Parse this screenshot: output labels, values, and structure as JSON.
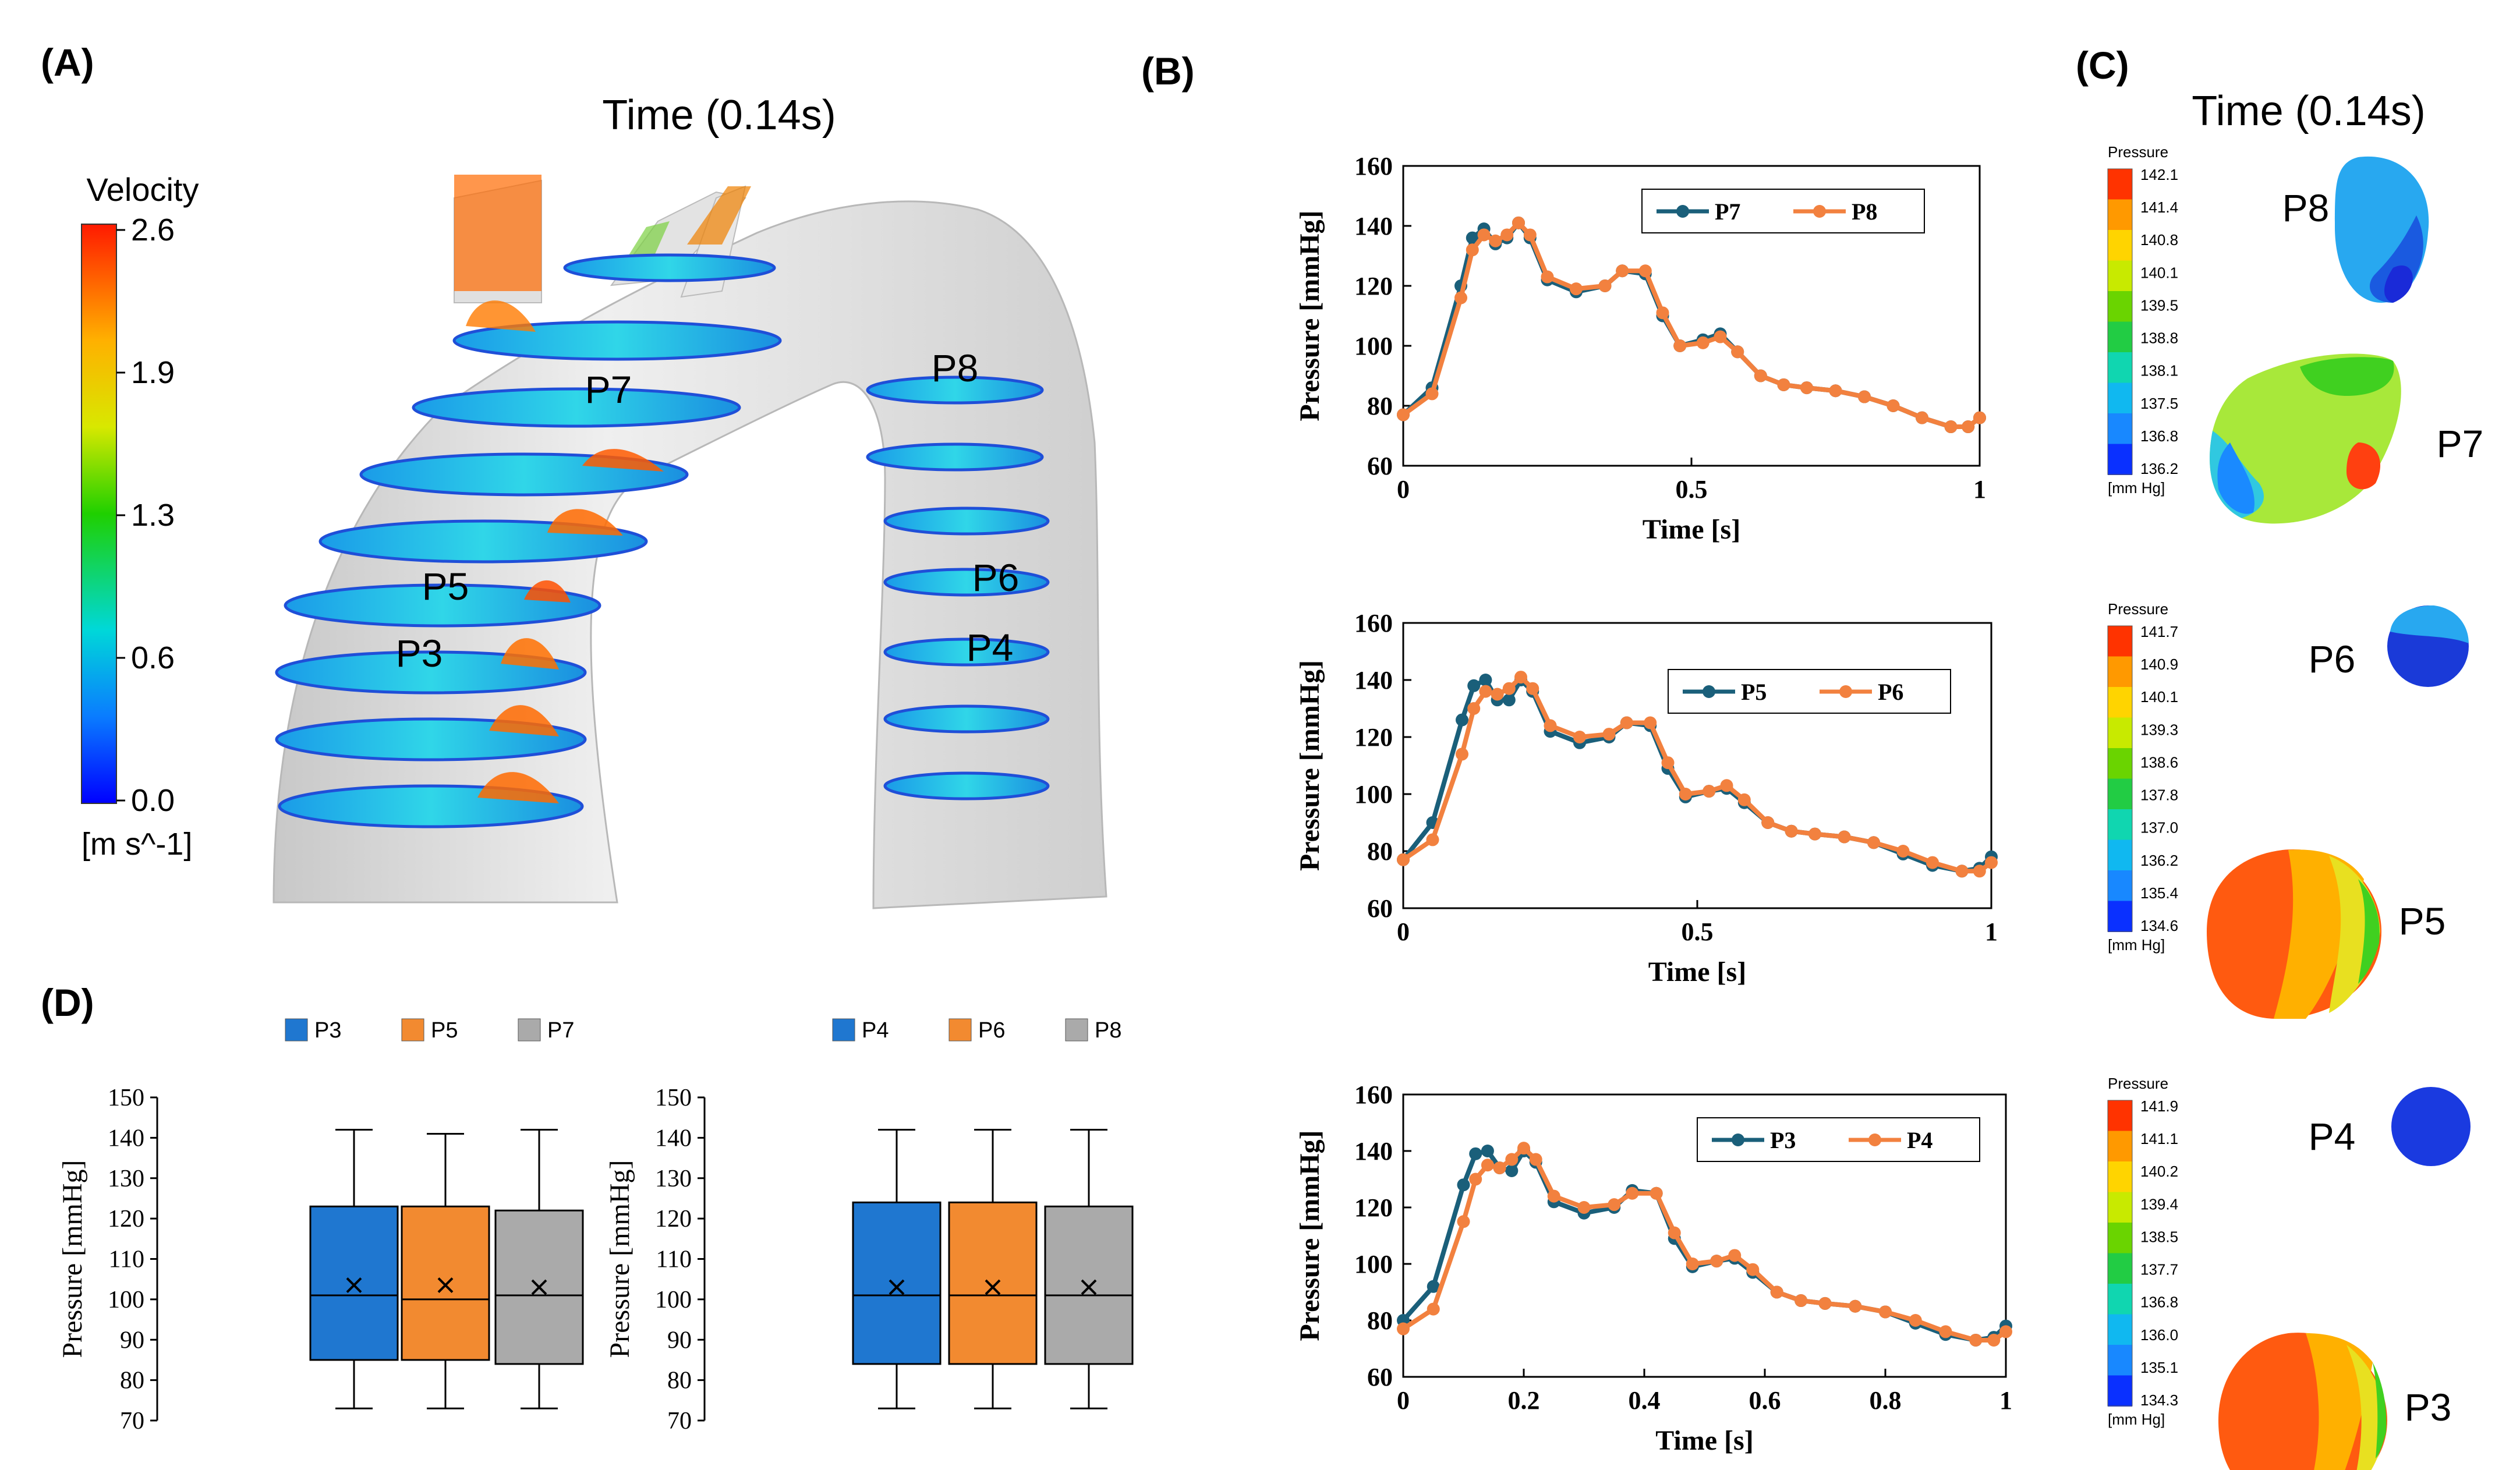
{
  "panels": {
    "A": "(A)",
    "B": "(B)",
    "C": "(C)",
    "D": "(D)"
  },
  "panelA": {
    "title": "Time (0.14s)",
    "colorbar": {
      "title": "Velocity",
      "unit": "[m s^-1]",
      "ticks": [
        "2.6",
        "1.9",
        "1.3",
        "0.6",
        "0.0"
      ]
    },
    "labels": [
      "P7",
      "P8",
      "P5",
      "P6",
      "P3",
      "P4"
    ]
  },
  "panelC": {
    "title": "Time (0.14s)",
    "legends": [
      {
        "title": "Pressure",
        "unit": "[mm Hg]",
        "ticks": [
          "142.1",
          "141.4",
          "140.8",
          "140.1",
          "139.5",
          "138.8",
          "138.1",
          "137.5",
          "136.8",
          "136.2"
        ]
      },
      {
        "title": "Pressure",
        "unit": "[mm Hg]",
        "ticks": [
          "141.7",
          "140.9",
          "140.1",
          "139.3",
          "138.6",
          "137.8",
          "137.0",
          "136.2",
          "135.4",
          "134.6"
        ]
      },
      {
        "title": "Pressure",
        "unit": "[mm Hg]",
        "ticks": [
          "141.9",
          "141.1",
          "140.2",
          "139.4",
          "138.5",
          "137.7",
          "136.8",
          "136.0",
          "135.1",
          "134.3"
        ]
      }
    ],
    "labels": [
      "P8",
      "P7",
      "P6",
      "P5",
      "P4",
      "P3"
    ]
  },
  "colors": {
    "series_blue": "#1a5f7a",
    "series_orange": "#f2813f",
    "box_blue": "#1f77d0",
    "box_orange": "#f28a30",
    "box_gray": "#aaaaaa",
    "aorta": "#e8e8e8"
  },
  "chart_data": [
    {
      "type": "line",
      "panel": "B",
      "title": "",
      "xlabel": "Time [s]",
      "ylabel": "Pressure [mmHg]",
      "xlim": [
        0,
        1
      ],
      "ylim": [
        60,
        160
      ],
      "xticks": [
        "0",
        "0.5",
        "1"
      ],
      "yticks": [
        "60",
        "80",
        "100",
        "120",
        "140",
        "160"
      ],
      "legend": "top-right",
      "series": [
        {
          "name": "P7",
          "x": [
            0,
            0.05,
            0.1,
            0.12,
            0.14,
            0.16,
            0.18,
            0.2,
            0.22,
            0.25,
            0.3,
            0.35,
            0.38,
            0.42,
            0.45,
            0.48,
            0.52,
            0.55,
            0.58,
            0.62,
            0.66,
            0.7,
            0.75,
            0.8,
            0.85,
            0.9,
            0.95,
            0.98,
            1.0
          ],
          "y": [
            77,
            86,
            120,
            136,
            139,
            134,
            136,
            141,
            136,
            122,
            118,
            120,
            125,
            124,
            110,
            100,
            102,
            104,
            98,
            90,
            87,
            86,
            85,
            83,
            80,
            76,
            73,
            73,
            76
          ]
        },
        {
          "name": "P8",
          "x": [
            0,
            0.05,
            0.1,
            0.12,
            0.14,
            0.16,
            0.18,
            0.2,
            0.22,
            0.25,
            0.3,
            0.35,
            0.38,
            0.42,
            0.45,
            0.48,
            0.52,
            0.55,
            0.58,
            0.62,
            0.66,
            0.7,
            0.75,
            0.8,
            0.85,
            0.9,
            0.95,
            0.98,
            1.0
          ],
          "y": [
            77,
            84,
            116,
            132,
            137,
            135,
            137,
            141,
            137,
            123,
            119,
            120,
            125,
            125,
            111,
            100,
            101,
            103,
            98,
            90,
            87,
            86,
            85,
            83,
            80,
            76,
            73,
            73,
            76
          ]
        }
      ]
    },
    {
      "type": "line",
      "panel": "B",
      "title": "",
      "xlabel": "Time [s]",
      "ylabel": "Pressure [mmHg]",
      "xlim": [
        0,
        1
      ],
      "ylim": [
        60,
        160
      ],
      "xticks": [
        "0",
        "0.5",
        "1"
      ],
      "yticks": [
        "60",
        "80",
        "100",
        "120",
        "140",
        "160"
      ],
      "legend": "top-right",
      "series": [
        {
          "name": "P5",
          "x": [
            0,
            0.05,
            0.1,
            0.12,
            0.14,
            0.16,
            0.18,
            0.2,
            0.22,
            0.25,
            0.3,
            0.35,
            0.38,
            0.42,
            0.45,
            0.48,
            0.52,
            0.55,
            0.58,
            0.62,
            0.66,
            0.7,
            0.75,
            0.8,
            0.85,
            0.9,
            0.95,
            0.98,
            1.0
          ],
          "y": [
            77,
            90,
            126,
            138,
            140,
            133,
            133,
            140,
            136,
            122,
            118,
            120,
            125,
            124,
            109,
            99,
            101,
            102,
            97,
            90,
            87,
            86,
            85,
            83,
            79,
            75,
            73,
            74,
            78
          ]
        },
        {
          "name": "P6",
          "x": [
            0,
            0.05,
            0.1,
            0.12,
            0.14,
            0.16,
            0.18,
            0.2,
            0.22,
            0.25,
            0.3,
            0.35,
            0.38,
            0.42,
            0.45,
            0.48,
            0.52,
            0.55,
            0.58,
            0.62,
            0.66,
            0.7,
            0.75,
            0.8,
            0.85,
            0.9,
            0.95,
            0.98,
            1.0
          ],
          "y": [
            77,
            84,
            114,
            130,
            136,
            135,
            137,
            141,
            137,
            124,
            120,
            121,
            125,
            125,
            111,
            100,
            101,
            103,
            98,
            90,
            87,
            86,
            85,
            83,
            80,
            76,
            73,
            73,
            76
          ]
        }
      ]
    },
    {
      "type": "line",
      "panel": "B",
      "title": "",
      "xlabel": "Time [s]",
      "ylabel": "Pressure [mmHg]",
      "xlim": [
        0,
        1
      ],
      "ylim": [
        60,
        160
      ],
      "xticks": [
        "0",
        "0.2",
        "0.4",
        "0.6",
        "0.8",
        "1"
      ],
      "yticks": [
        "60",
        "80",
        "100",
        "120",
        "140",
        "160"
      ],
      "legend": "top-right",
      "series": [
        {
          "name": "P3",
          "x": [
            0,
            0.05,
            0.1,
            0.12,
            0.14,
            0.16,
            0.18,
            0.2,
            0.22,
            0.25,
            0.3,
            0.35,
            0.38,
            0.42,
            0.45,
            0.48,
            0.52,
            0.55,
            0.58,
            0.62,
            0.66,
            0.7,
            0.75,
            0.8,
            0.85,
            0.9,
            0.95,
            0.98,
            1.0
          ],
          "y": [
            80,
            92,
            128,
            139,
            140,
            134,
            133,
            140,
            136,
            122,
            118,
            120,
            126,
            125,
            109,
            99,
            101,
            102,
            97,
            90,
            87,
            86,
            85,
            83,
            79,
            75,
            73,
            74,
            78
          ]
        },
        {
          "name": "P4",
          "x": [
            0,
            0.05,
            0.1,
            0.12,
            0.14,
            0.16,
            0.18,
            0.2,
            0.22,
            0.25,
            0.3,
            0.35,
            0.38,
            0.42,
            0.45,
            0.48,
            0.52,
            0.55,
            0.58,
            0.62,
            0.66,
            0.7,
            0.75,
            0.8,
            0.85,
            0.9,
            0.95,
            0.98,
            1.0
          ],
          "y": [
            77,
            84,
            115,
            130,
            135,
            134,
            137,
            141,
            137,
            124,
            120,
            121,
            125,
            125,
            111,
            100,
            101,
            103,
            98,
            90,
            87,
            86,
            85,
            83,
            80,
            76,
            73,
            73,
            76
          ]
        }
      ]
    },
    {
      "type": "box",
      "panel": "D",
      "title": "",
      "ylabel": "Pressure [mmHg]",
      "ylim": [
        70,
        150
      ],
      "yticks": [
        "70",
        "80",
        "90",
        "100",
        "110",
        "120",
        "130",
        "140",
        "150"
      ],
      "legend": "top",
      "series": [
        {
          "name": "P3",
          "min": 73,
          "q1": 85,
          "median": 101,
          "q3": 123,
          "max": 142,
          "mean": 103.5
        },
        {
          "name": "P5",
          "min": 73,
          "q1": 85,
          "median": 100,
          "q3": 123,
          "max": 141,
          "mean": 103.5
        },
        {
          "name": "P7",
          "min": 73,
          "q1": 84,
          "median": 101,
          "q3": 122,
          "max": 142,
          "mean": 103
        }
      ]
    },
    {
      "type": "box",
      "panel": "D",
      "title": "",
      "ylabel": "Pressure [mmHg]",
      "ylim": [
        70,
        150
      ],
      "yticks": [
        "70",
        "80",
        "90",
        "100",
        "110",
        "120",
        "130",
        "140",
        "150"
      ],
      "legend": "top",
      "series": [
        {
          "name": "P4",
          "min": 73,
          "q1": 84,
          "median": 101,
          "q3": 124,
          "max": 142,
          "mean": 103
        },
        {
          "name": "P6",
          "min": 73,
          "q1": 84,
          "median": 101,
          "q3": 124,
          "max": 142,
          "mean": 103
        },
        {
          "name": "P8",
          "min": 73,
          "q1": 84,
          "median": 101,
          "q3": 123,
          "max": 142,
          "mean": 103
        }
      ]
    }
  ]
}
